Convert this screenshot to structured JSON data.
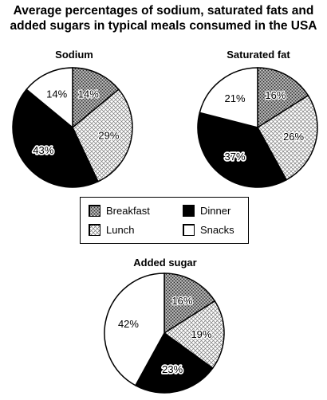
{
  "title_line1": "Average percentages of sodium, saturated fats and",
  "title_line2": "added sugars in typical meals consumed in the USA",
  "legend": [
    {
      "label": "Breakfast",
      "pattern": "breakfast"
    },
    {
      "label": "Dinner",
      "pattern": "dinner"
    },
    {
      "label": "Lunch",
      "pattern": "lunch"
    },
    {
      "label": "Snacks",
      "pattern": "snacks"
    }
  ],
  "colors": {
    "dinner": "#000000",
    "snacks": "#ffffff",
    "outline": "#000000"
  },
  "chart_data": [
    {
      "type": "pie",
      "title": "Sodium",
      "categories": [
        "Breakfast",
        "Lunch",
        "Dinner",
        "Snacks"
      ],
      "values": [
        14,
        29,
        43,
        14
      ],
      "labels": [
        "14%",
        "29%",
        "43%",
        "14%"
      ]
    },
    {
      "type": "pie",
      "title": "Saturated fat",
      "categories": [
        "Breakfast",
        "Lunch",
        "Dinner",
        "Snacks"
      ],
      "values": [
        16,
        26,
        37,
        21
      ],
      "labels": [
        "16%",
        "26%",
        "37%",
        "21%"
      ]
    },
    {
      "type": "pie",
      "title": "Added sugar",
      "categories": [
        "Breakfast",
        "Lunch",
        "Dinner",
        "Snacks"
      ],
      "values": [
        16,
        19,
        23,
        42
      ],
      "labels": [
        "16%",
        "19%",
        "23%",
        "42%"
      ]
    }
  ]
}
